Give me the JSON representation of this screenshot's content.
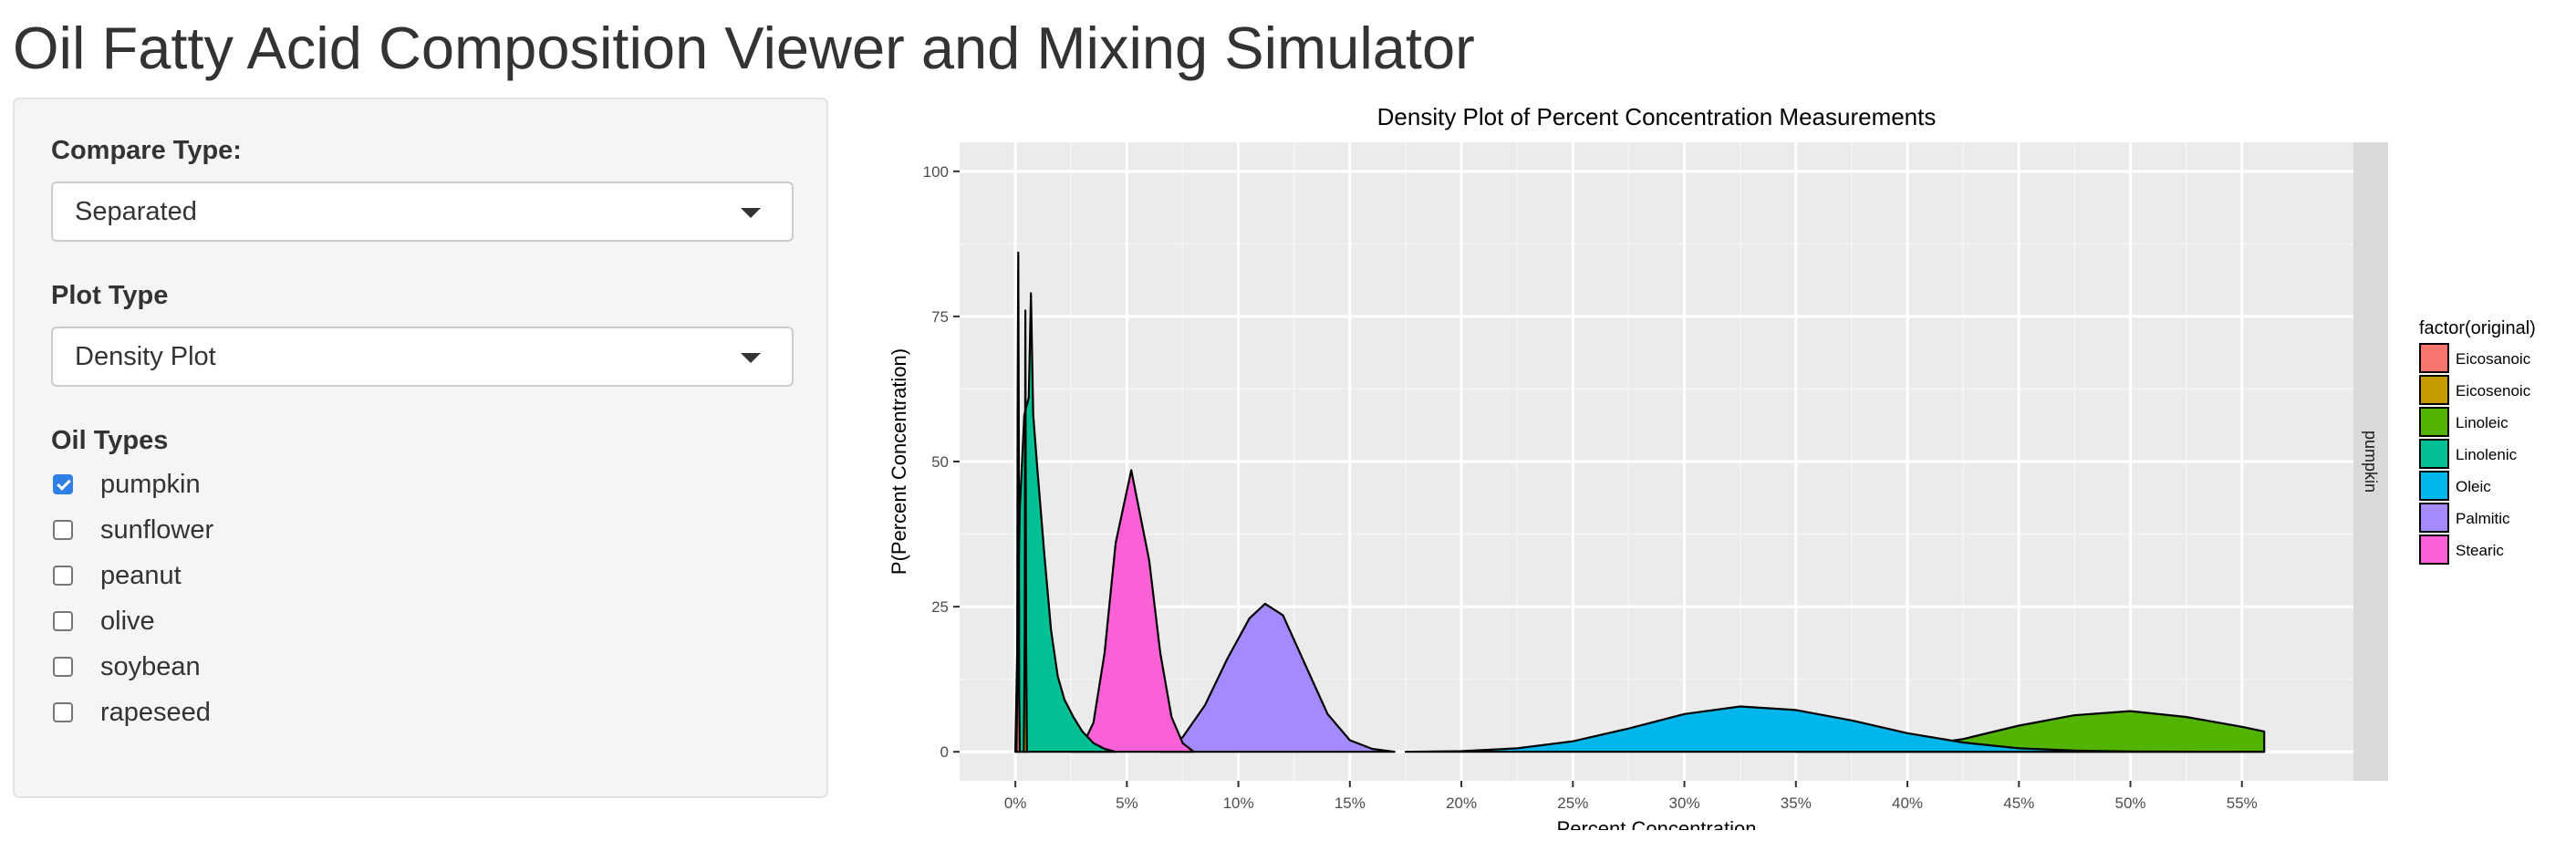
{
  "app": {
    "title": "Oil Fatty Acid Composition Viewer and Mixing Simulator"
  },
  "sidebar": {
    "compare_type": {
      "label": "Compare Type:",
      "selected": "Separated"
    },
    "plot_type": {
      "label": "Plot Type",
      "selected": "Density Plot"
    },
    "oil_types": {
      "label": "Oil Types",
      "options": [
        {
          "label": "pumpkin",
          "checked": true
        },
        {
          "label": "sunflower",
          "checked": false
        },
        {
          "label": "peanut",
          "checked": false
        },
        {
          "label": "olive",
          "checked": false
        },
        {
          "label": "soybean",
          "checked": false
        },
        {
          "label": "rapeseed",
          "checked": false
        }
      ]
    }
  },
  "colors": {
    "checkbox_accent": "#2f7fe4",
    "panel_bg": "#f5f5f5",
    "plot_bg": "#ebebeb",
    "strip_bg": "#d9d9d9"
  },
  "chart_data": {
    "type": "area",
    "title": "Density Plot of Percent Concentration Measurements",
    "xlabel": "Percent Concentration",
    "ylabel": "P(Percent Concentration)",
    "xlim": [
      -2.5,
      60
    ],
    "ylim": [
      -5,
      105
    ],
    "x_ticks": [
      0,
      5,
      10,
      15,
      20,
      25,
      30,
      35,
      40,
      45,
      50,
      55
    ],
    "x_tick_labels": [
      "0%",
      "5%",
      "10%",
      "15%",
      "20%",
      "25%",
      "30%",
      "35%",
      "40%",
      "45%",
      "50%",
      "55%"
    ],
    "y_ticks": [
      0,
      25,
      50,
      75,
      100
    ],
    "y_tick_labels": [
      "0",
      "25",
      "50",
      "75",
      "100"
    ],
    "facet_label": "pumpkin",
    "grid": true,
    "legend_position": "right",
    "legend_title": "factor(original)",
    "series": [
      {
        "name": "Eicosanoic",
        "color": "#F8766D",
        "x": [
          0.05,
          0.08,
          0.1,
          0.13,
          0.15,
          0.17,
          0.2
        ],
        "y": [
          0,
          10,
          58,
          86,
          60,
          10,
          0
        ]
      },
      {
        "name": "Eicosenoic",
        "color": "#C49A00",
        "x": [
          0.38,
          0.42,
          0.45,
          0.48,
          0.52
        ],
        "y": [
          0,
          20,
          76,
          20,
          0
        ]
      },
      {
        "name": "Linoleic",
        "color": "#53B400",
        "x": [
          35,
          37.5,
          40,
          42.5,
          45,
          47.5,
          50,
          52.5,
          55,
          56
        ],
        "y": [
          0,
          0.2,
          0.8,
          2.2,
          4.5,
          6.3,
          7,
          6,
          4.3,
          3.5
        ]
      },
      {
        "name": "Linolenic",
        "color": "#00C094",
        "x": [
          0,
          0.2,
          0.4,
          0.6,
          0.7,
          0.8,
          1,
          1.3,
          1.6,
          1.9,
          2.2,
          2.6,
          3,
          3.5,
          4,
          4.5
        ],
        "y": [
          0,
          42,
          58,
          61,
          79,
          58,
          48,
          34,
          21,
          13,
          9,
          6,
          3.5,
          1.5,
          0.5,
          0
        ]
      },
      {
        "name": "Oleic",
        "color": "#00B6EB",
        "x": [
          17.5,
          20,
          22.5,
          25,
          27.5,
          30,
          32.5,
          35,
          37.5,
          40,
          42.5,
          45,
          47.5,
          50,
          55,
          56
        ],
        "y": [
          0,
          0.1,
          0.6,
          1.8,
          4,
          6.5,
          7.8,
          7.2,
          5.4,
          3.2,
          1.6,
          0.6,
          0.2,
          0.05,
          0,
          0
        ]
      },
      {
        "name": "Palmitic",
        "color": "#A58AFF",
        "x": [
          6.5,
          7.5,
          8.5,
          9.5,
          10.5,
          11.2,
          12,
          13,
          14,
          15,
          16,
          17
        ],
        "y": [
          0,
          2.5,
          8,
          16,
          23,
          25.5,
          23.5,
          15,
          6.5,
          2,
          0.5,
          0
        ]
      },
      {
        "name": "Stearic",
        "color": "#FB61D7",
        "x": [
          2.5,
          3,
          3.5,
          4,
          4.5,
          5.2,
          6,
          6.5,
          7,
          7.5,
          8
        ],
        "y": [
          0,
          1,
          5,
          17,
          36,
          48.5,
          33,
          17,
          6,
          1.5,
          0
        ]
      }
    ]
  }
}
